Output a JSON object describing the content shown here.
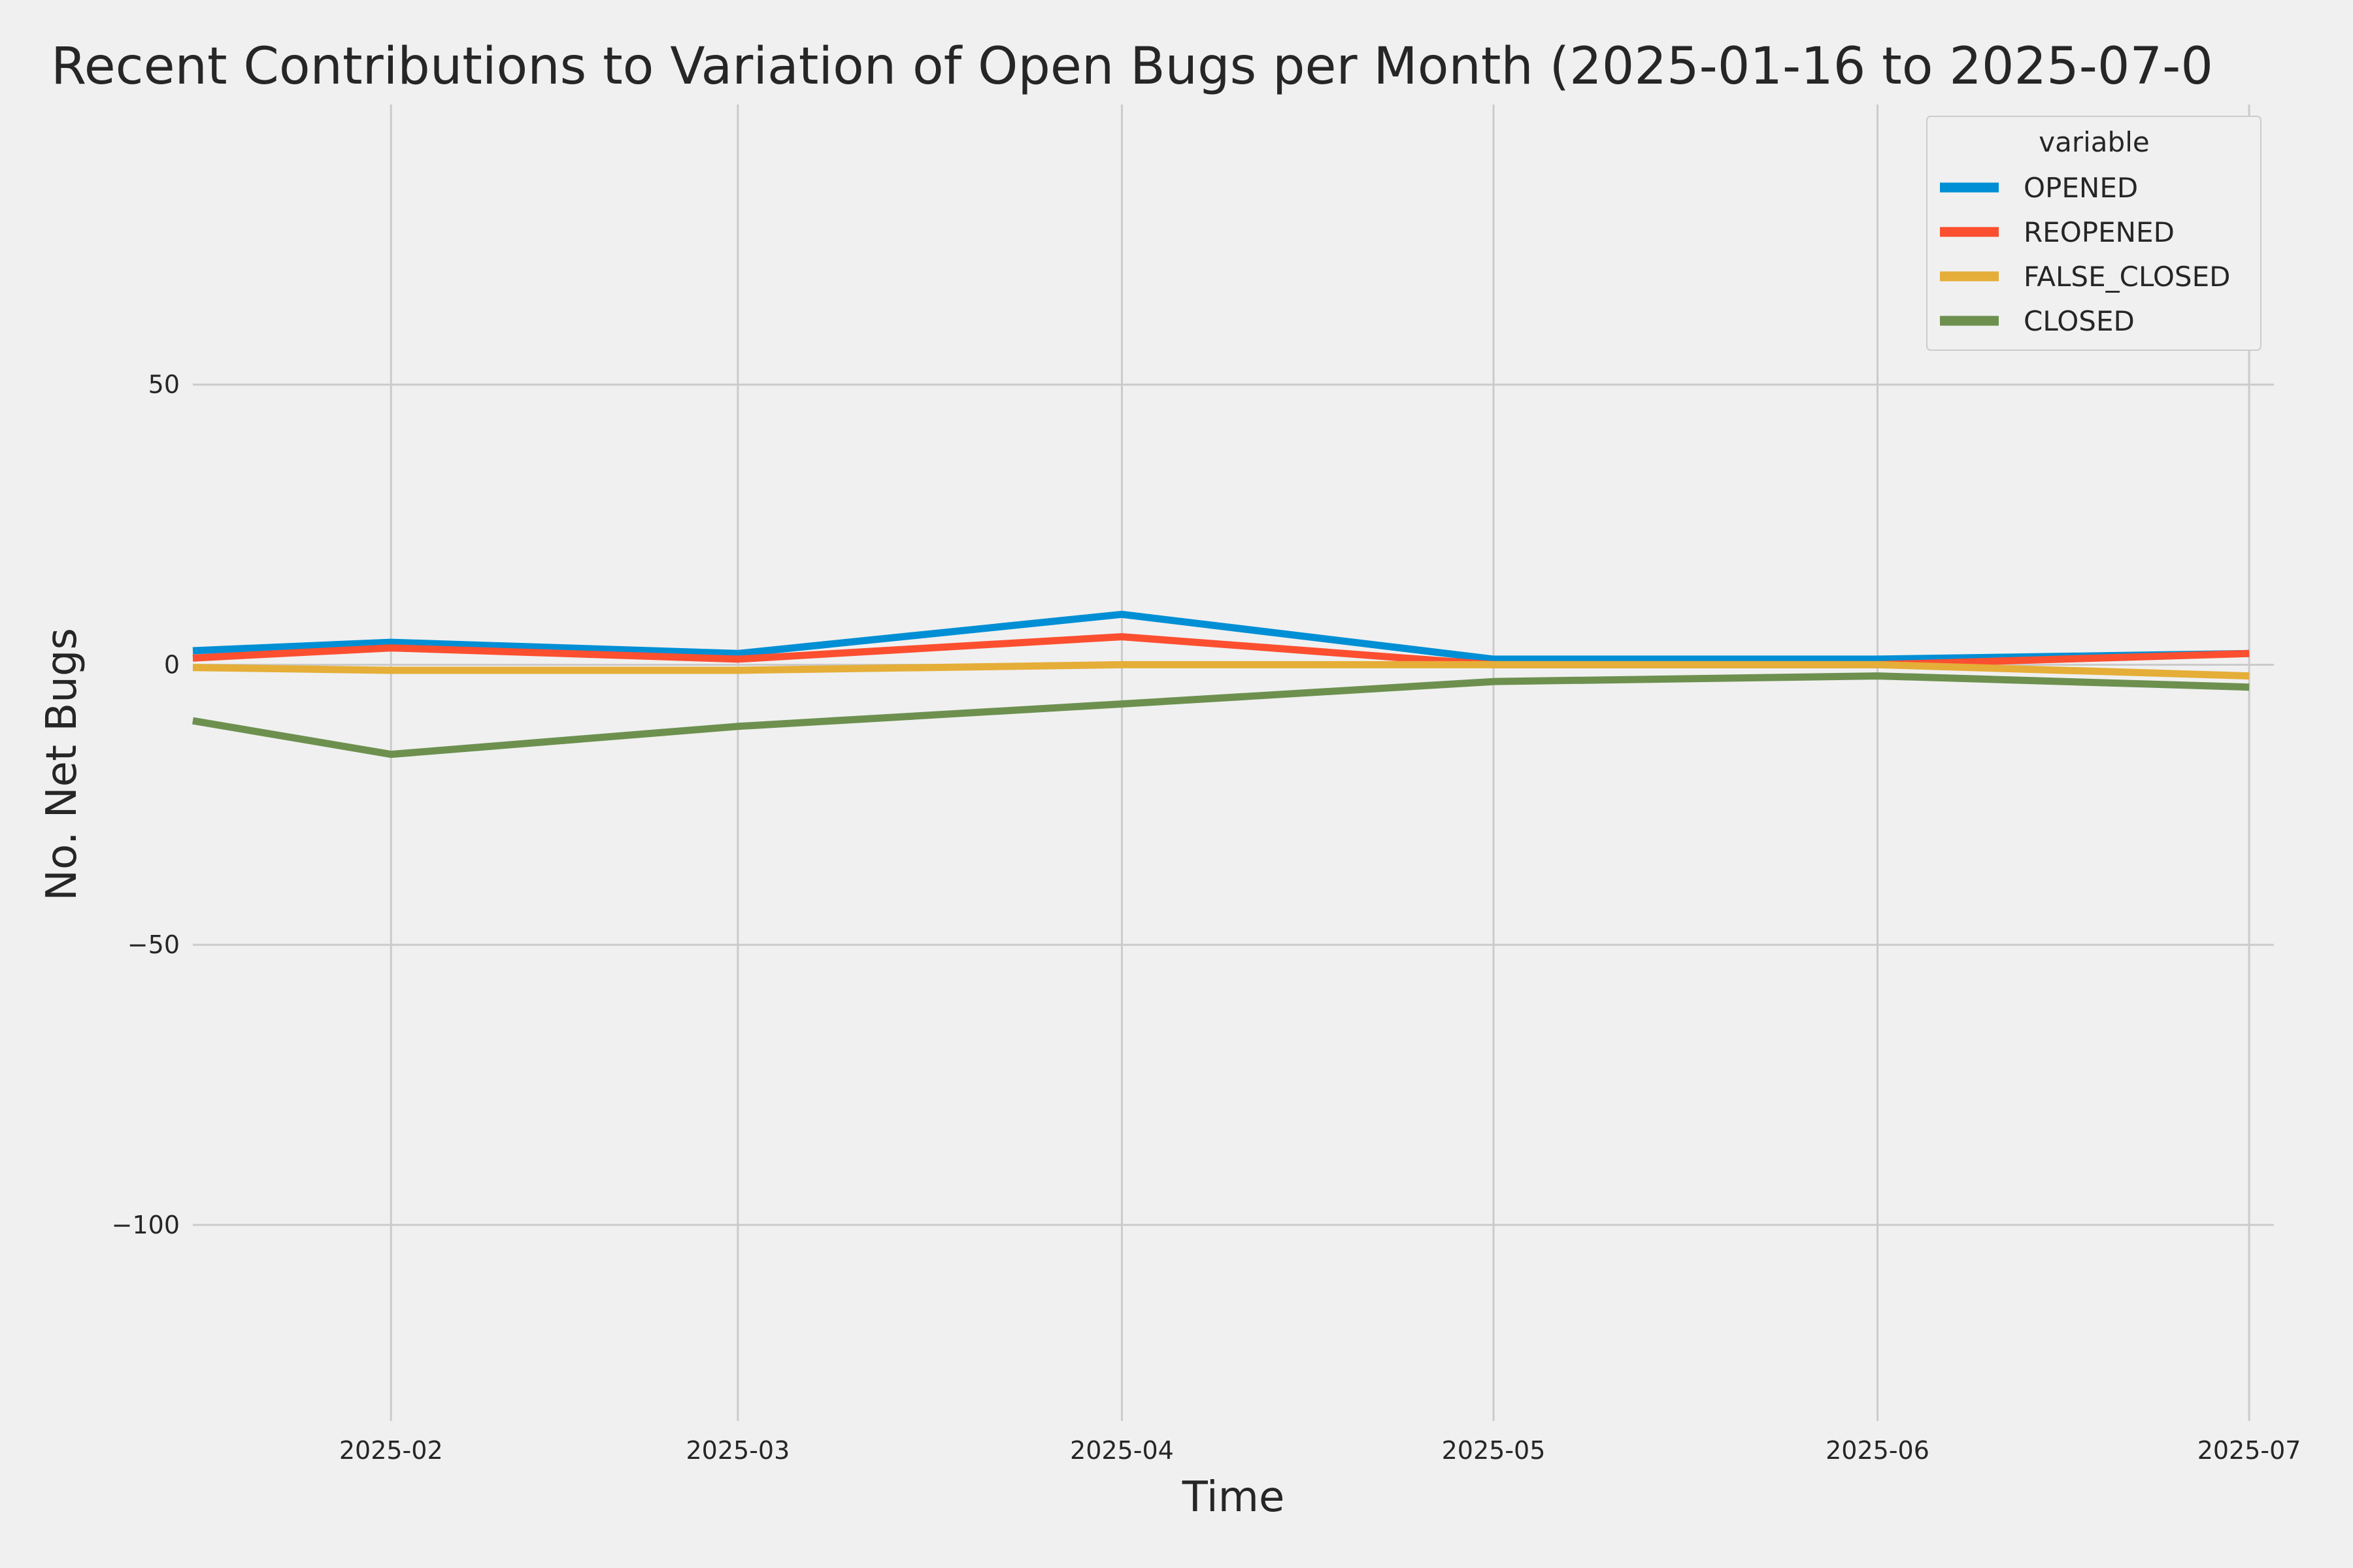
{
  "chart_data": {
    "type": "line",
    "title": "Recent Contributions to Variation of Open Bugs per Month (2025-01-16 to 2025-07-0",
    "xlabel": "Time",
    "ylabel": "No. Net Bugs",
    "x": [
      "2025-01-16",
      "2025-02-01",
      "2025-03-01",
      "2025-04-01",
      "2025-05-01",
      "2025-06-01",
      "2025-07-01"
    ],
    "xlim": [
      "2025-01-16",
      "2025-07-03"
    ],
    "ylim": [
      -135,
      100
    ],
    "x_ticks": [
      "2025-02",
      "2025-03",
      "2025-04",
      "2025-05",
      "2025-06",
      "2025-07"
    ],
    "y_ticks": [
      50,
      0,
      -50,
      -100
    ],
    "y_tick_labels": [
      "50",
      "0",
      "−50",
      "−100"
    ],
    "grid": true,
    "legend": {
      "title": "variable",
      "position": "top-right"
    },
    "series": [
      {
        "name": "OPENED",
        "color": "#008fd5",
        "values": [
          2.5,
          4,
          2,
          9,
          1,
          1,
          2
        ]
      },
      {
        "name": "REOPENED",
        "color": "#fc4f30",
        "values": [
          1.2,
          3,
          1,
          5,
          0,
          0,
          2
        ]
      },
      {
        "name": "FALSE_CLOSED",
        "color": "#e5ae38",
        "values": [
          -0.5,
          -1,
          -1,
          0,
          0,
          0,
          -2
        ]
      },
      {
        "name": "CLOSED",
        "color": "#6d904f",
        "values": [
          -10,
          -16,
          -11,
          -7,
          -3,
          -2,
          -4
        ]
      }
    ]
  }
}
